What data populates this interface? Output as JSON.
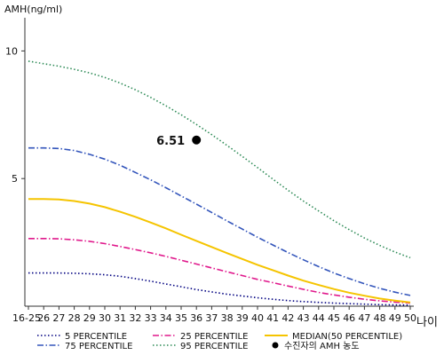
{
  "chart_data": {
    "type": "line",
    "ylabel": "AMH(ng/ml)",
    "xlabel": "나이",
    "y_ticks": [
      5,
      10
    ],
    "ylim": [
      0,
      11.3
    ],
    "x_ticks": [
      "16-25",
      "26",
      "27",
      "28",
      "29",
      "30",
      "31",
      "32",
      "33",
      "34",
      "35",
      "36",
      "37",
      "38",
      "39",
      "40",
      "41",
      "42",
      "43",
      "44",
      "45",
      "46",
      "47",
      "48",
      "49",
      "50"
    ],
    "grid": false,
    "legend_position": "bottom",
    "series": [
      {
        "name": "5 PERCENTILE",
        "color": "#000080",
        "dash": "dotted",
        "values": [
          1.3,
          1.3,
          1.3,
          1.29,
          1.27,
          1.23,
          1.17,
          1.08,
          0.98,
          0.87,
          0.76,
          0.65,
          0.56,
          0.47,
          0.4,
          0.33,
          0.27,
          0.22,
          0.18,
          0.15,
          0.12,
          0.1,
          0.08,
          0.06,
          0.05,
          0.04
        ]
      },
      {
        "name": "25 PERCENTILE",
        "color": "#e0198c",
        "dash": "dashdot",
        "values": [
          2.65,
          2.65,
          2.64,
          2.6,
          2.54,
          2.45,
          2.34,
          2.22,
          2.09,
          1.95,
          1.8,
          1.65,
          1.5,
          1.35,
          1.2,
          1.05,
          0.92,
          0.79,
          0.66,
          0.54,
          0.44,
          0.35,
          0.27,
          0.21,
          0.16,
          0.12
        ]
      },
      {
        "name": "MEDIAN(50 PERCENTILE)",
        "color": "#f5c400",
        "dash": "solid",
        "values": [
          4.2,
          4.2,
          4.18,
          4.12,
          4.02,
          3.88,
          3.7,
          3.5,
          3.28,
          3.05,
          2.8,
          2.56,
          2.32,
          2.08,
          1.85,
          1.62,
          1.41,
          1.2,
          1.0,
          0.83,
          0.67,
          0.53,
          0.41,
          0.3,
          0.22,
          0.15
        ]
      },
      {
        "name": "75 PERCENTILE",
        "color": "#3355bb",
        "dash": "dashdot",
        "values": [
          6.2,
          6.2,
          6.18,
          6.1,
          5.95,
          5.76,
          5.52,
          5.24,
          4.95,
          4.64,
          4.32,
          4.0,
          3.67,
          3.34,
          3.02,
          2.7,
          2.4,
          2.1,
          1.82,
          1.55,
          1.3,
          1.08,
          0.88,
          0.7,
          0.55,
          0.42
        ]
      },
      {
        "name": "95 PERCENTILE",
        "color": "#2e8b57",
        "dash": "dotted",
        "values": [
          9.6,
          9.5,
          9.4,
          9.28,
          9.14,
          8.96,
          8.74,
          8.48,
          8.18,
          7.85,
          7.5,
          7.12,
          6.72,
          6.3,
          5.87,
          5.43,
          4.98,
          4.54,
          4.12,
          3.73,
          3.35,
          3.0,
          2.67,
          2.38,
          2.12,
          1.9
        ]
      }
    ],
    "points": [
      {
        "name": "수진자의 AMH 농도",
        "x": "36",
        "y": 6.51,
        "label": "6.51",
        "color": "#000000"
      }
    ]
  }
}
